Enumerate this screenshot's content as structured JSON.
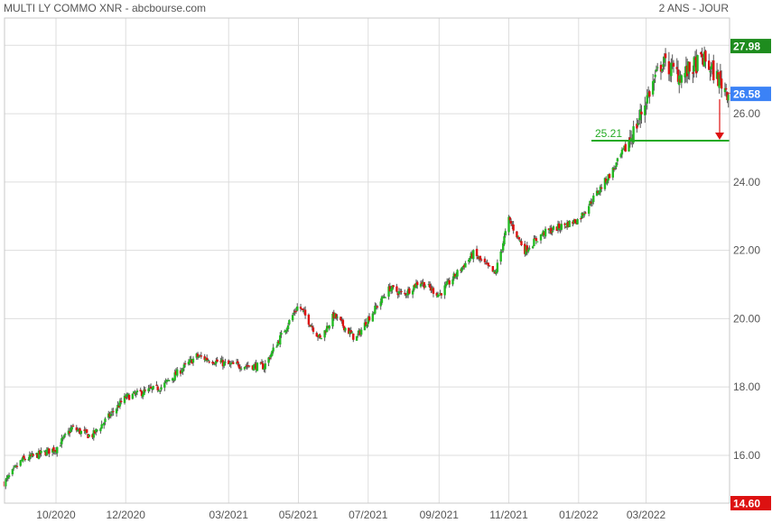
{
  "header": {
    "title": "MULTI LY COMMO XNR - abcbourse.com",
    "period": "2 ANS - JOUR"
  },
  "colors": {
    "up": "#22bb22",
    "down": "#dd1111",
    "support": "#22aa22",
    "high_badge": "#1e8c1e",
    "last_badge": "#3b82f6",
    "arrow": "#dd1111",
    "wick": "#555555"
  },
  "chart_data": {
    "type": "candlestick",
    "title": "",
    "xlabel": "",
    "ylabel": "",
    "ylim": [
      14.6,
      28.8
    ],
    "yticks": [
      16.0,
      18.0,
      20.0,
      22.0,
      24.0,
      26.0
    ],
    "ytick_labels": [
      "16.00",
      "18.00",
      "20.00",
      "22.00",
      "24.00",
      "26.00"
    ],
    "x_range": [
      "2020-08-17",
      "2022-05-13"
    ],
    "xtick_labels": [
      "10/2020",
      "12/2020",
      "03/2021",
      "05/2021",
      "07/2021",
      "09/2021",
      "11/2021",
      "01/2022",
      "03/2022"
    ],
    "xtick_dates": [
      "2020-10-01",
      "2020-12-01",
      "2021-03-01",
      "2021-05-01",
      "2021-07-01",
      "2021-09-01",
      "2021-11-01",
      "2022-01-01",
      "2022-03-01"
    ],
    "close_anchors": [
      [
        "2020-08-17",
        15.2
      ],
      [
        "2020-09-01",
        15.85
      ],
      [
        "2020-10-01",
        16.2
      ],
      [
        "2020-10-15",
        16.8
      ],
      [
        "2020-11-01",
        16.55
      ],
      [
        "2020-12-01",
        17.7
      ],
      [
        "2021-01-01",
        18.0
      ],
      [
        "2021-02-01",
        18.9
      ],
      [
        "2021-03-01",
        18.65
      ],
      [
        "2021-04-01",
        18.6
      ],
      [
        "2021-05-01",
        20.4
      ],
      [
        "2021-05-20",
        19.4
      ],
      [
        "2021-06-01",
        20.1
      ],
      [
        "2021-06-20",
        19.4
      ],
      [
        "2021-07-01",
        20.0
      ],
      [
        "2021-07-20",
        20.9
      ],
      [
        "2021-08-01",
        20.7
      ],
      [
        "2021-08-15",
        21.1
      ],
      [
        "2021-09-01",
        20.7
      ],
      [
        "2021-10-01",
        21.9
      ],
      [
        "2021-10-20",
        21.3
      ],
      [
        "2021-11-01",
        22.9
      ],
      [
        "2021-11-15",
        22.0
      ],
      [
        "2021-12-01",
        22.5
      ],
      [
        "2022-01-01",
        22.9
      ],
      [
        "2022-02-01",
        24.4
      ],
      [
        "2022-02-20",
        25.6
      ],
      [
        "2022-03-01",
        26.4
      ],
      [
        "2022-03-15",
        27.5
      ],
      [
        "2022-04-01",
        27.1
      ],
      [
        "2022-04-20",
        27.6
      ],
      [
        "2022-05-13",
        26.58
      ]
    ],
    "last_price": 26.58,
    "period_high": 27.98,
    "bottom_tick_label": "14.60",
    "support_level": 25.21,
    "support_label": "25.21",
    "high_label": "27.98",
    "last_label": "26.58",
    "grid": true
  }
}
